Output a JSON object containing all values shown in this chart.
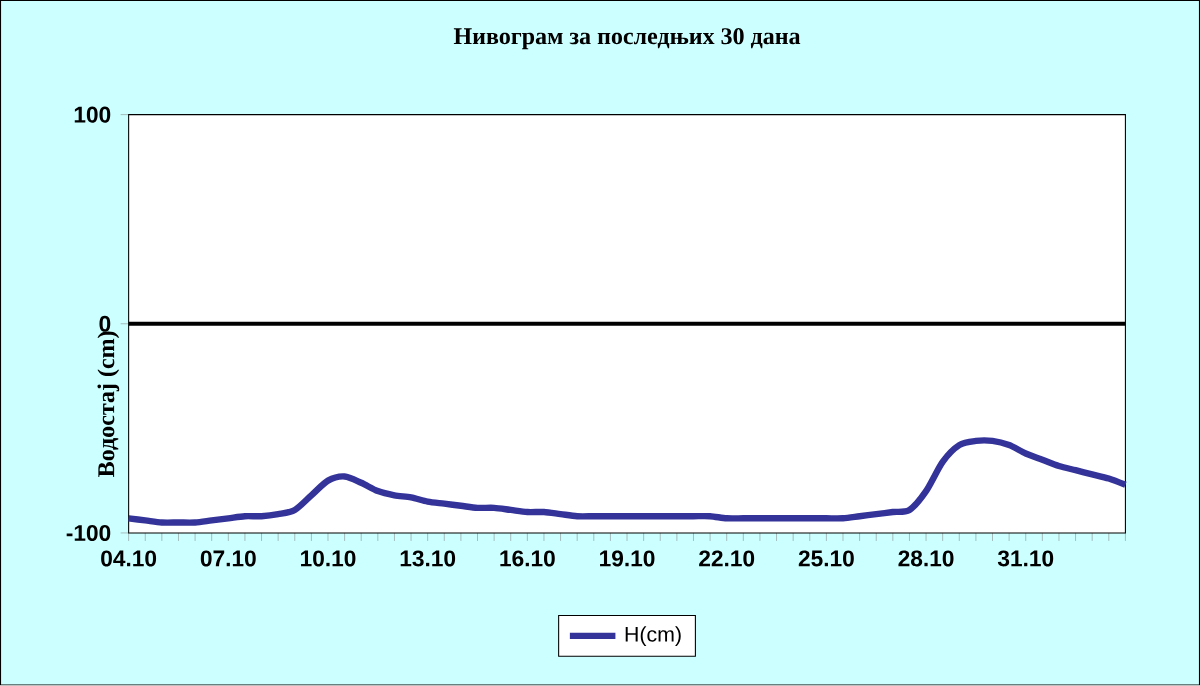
{
  "chart_data": {
    "type": "line",
    "title": "Нивограм за последњих 30 дана",
    "ylabel": "Водостај (cm)",
    "categories": [
      "04.10",
      null,
      null,
      null,
      null,
      null,
      "07.10",
      null,
      null,
      null,
      null,
      null,
      "10.10",
      null,
      null,
      null,
      null,
      null,
      "13.10",
      null,
      null,
      null,
      null,
      null,
      "16.10",
      null,
      null,
      null,
      null,
      null,
      "19.10",
      null,
      null,
      null,
      null,
      null,
      "22.10",
      null,
      null,
      null,
      null,
      null,
      "25.10",
      null,
      null,
      null,
      null,
      null,
      "28.10",
      null,
      null,
      null,
      null,
      null,
      "31.10",
      null,
      null,
      null,
      null,
      null,
      null
    ],
    "series": [
      {
        "name": "H(cm)",
        "color": "#333399",
        "values": [
          -93,
          -94,
          -95,
          -95,
          -95,
          -94,
          -93,
          -92,
          -92,
          -91,
          -89,
          -82,
          -75,
          -73,
          -76,
          -80,
          -82,
          -83,
          -85,
          -86,
          -87,
          -88,
          -88,
          -89,
          -90,
          -90,
          -91,
          -92,
          -92,
          -92,
          -92,
          -92,
          -92,
          -92,
          -92,
          -92,
          -93,
          -93,
          -93,
          -93,
          -93,
          -93,
          -93,
          -93,
          -92,
          -91,
          -90,
          -89,
          -80,
          -66,
          -58,
          -56,
          -56,
          -58,
          -62,
          -65,
          -68,
          -70,
          -72,
          -74,
          -77
        ]
      }
    ],
    "ylim": [
      -100,
      100
    ],
    "yticks": [
      -100,
      0,
      100
    ],
    "ref_lines": [
      {
        "axis": "y",
        "value": 0,
        "color": "#000000"
      }
    ],
    "legend": "bottom",
    "marker": "none",
    "line_style": "solid",
    "grid": false
  }
}
